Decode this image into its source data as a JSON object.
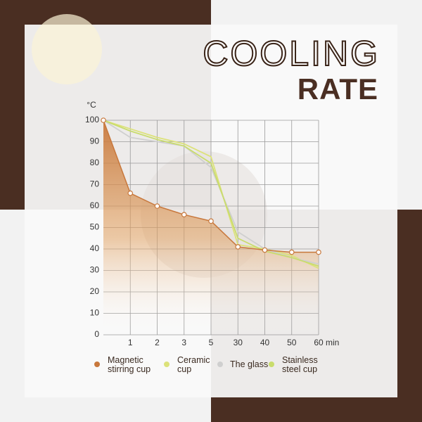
{
  "chart_data": {
    "type": "line",
    "title": "COOLING",
    "subtitle": "RATE",
    "y_label": "°C",
    "x_unit": "min",
    "categories": [
      null,
      "1",
      "2",
      "3",
      "5",
      "30",
      "40",
      "50",
      "60"
    ],
    "ylim": [
      0,
      100
    ],
    "yticks": [
      0,
      10,
      20,
      30,
      40,
      50,
      60,
      70,
      80,
      90,
      100
    ],
    "grid": true,
    "series": [
      {
        "name": "Magnetic\nstirring cup",
        "color": "#c8783c",
        "area": true,
        "markers": true,
        "values": [
          100,
          66,
          60,
          56,
          53,
          41,
          39.5,
          38.5,
          38.5
        ]
      },
      {
        "name": "Ceramic\ncup",
        "color": "#dce27a",
        "values": [
          100,
          96,
          92,
          89,
          83,
          42,
          40,
          37,
          31
        ]
      },
      {
        "name": "The glass",
        "color": "#cfcfcf",
        "values": [
          100,
          92,
          90,
          88,
          78,
          48,
          40,
          36,
          33
        ]
      },
      {
        "name": "Stainless\nsteel cup",
        "color": "#c9dc6c",
        "values": [
          100,
          95,
          91,
          88,
          80,
          45,
          39,
          36,
          32
        ]
      }
    ]
  }
}
